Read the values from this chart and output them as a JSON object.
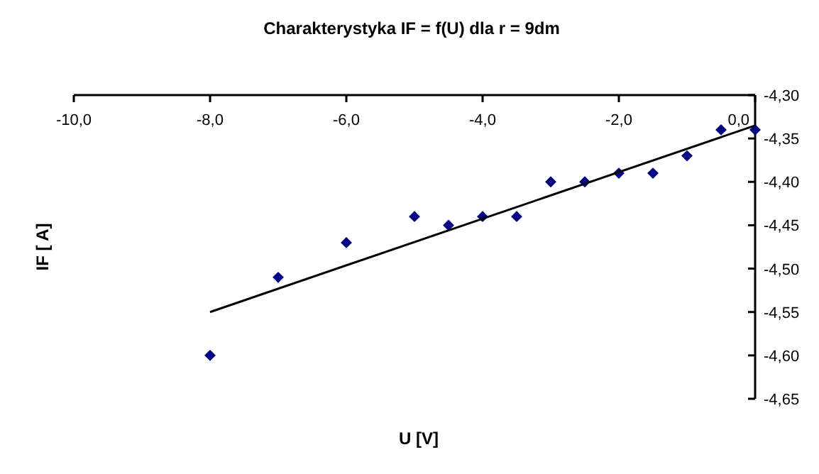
{
  "chart_data": {
    "type": "scatter",
    "title": "Charakterystyka IF = f(U) dla r = 9dm",
    "xlabel": "U [V]",
    "ylabel": "IF [ A]",
    "xlim": [
      -10,
      0
    ],
    "ylim": [
      -4.65,
      -4.3
    ],
    "xticks": [
      {
        "value": -10,
        "label": "-10,0"
      },
      {
        "value": -8,
        "label": "-8,0"
      },
      {
        "value": -6,
        "label": "-6,0"
      },
      {
        "value": -4,
        "label": "-4,0"
      },
      {
        "value": -2,
        "label": "-2,0"
      },
      {
        "value": 0,
        "label": "0,0"
      }
    ],
    "yticks": [
      {
        "value": -4.65,
        "label": "-4,65"
      },
      {
        "value": -4.6,
        "label": "-4,60"
      },
      {
        "value": -4.55,
        "label": "-4,55"
      },
      {
        "value": -4.5,
        "label": "-4,50"
      },
      {
        "value": -4.45,
        "label": "-4,45"
      },
      {
        "value": -4.4,
        "label": "-4,40"
      },
      {
        "value": -4.35,
        "label": "-4,35"
      },
      {
        "value": -4.3,
        "label": "-4,30"
      }
    ],
    "marker": "diamond",
    "series": [
      {
        "type": "scatter",
        "color": "#000080",
        "x": [
          -8,
          -7,
          -6,
          -5,
          -4.5,
          -4,
          -3.5,
          -3,
          -2.5,
          -2,
          -1.5,
          -1,
          -0.5,
          0
        ],
        "values": [
          -4.6,
          -4.51,
          -4.47,
          -4.44,
          -4.45,
          -4.44,
          -4.44,
          -4.4,
          -4.4,
          -4.39,
          -4.39,
          -4.37,
          -4.34,
          -4.34
        ]
      },
      {
        "type": "line",
        "color": "#000000",
        "line_style": "solid",
        "marker": "none",
        "x": [
          -8,
          0
        ],
        "values": [
          -4.55,
          -4.335
        ]
      }
    ]
  }
}
